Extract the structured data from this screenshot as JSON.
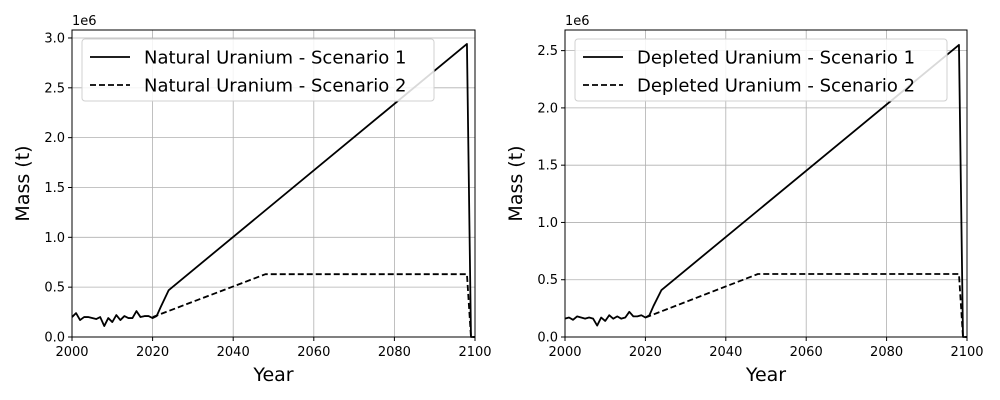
{
  "chart_data": [
    {
      "type": "line",
      "title": "",
      "xlabel": "Year",
      "ylabel": "Mass (t)",
      "y_offset_label": "1e6",
      "xlim": [
        2000,
        2100
      ],
      "ylim": [
        0,
        3.08
      ],
      "x_ticks": [
        2000,
        2020,
        2040,
        2060,
        2080,
        2100
      ],
      "x_tick_labels": [
        "2000",
        "2020",
        "2040",
        "2060",
        "2080",
        "2100"
      ],
      "y_ticks": [
        0,
        0.5,
        1.0,
        1.5,
        2.0,
        2.5,
        3.0
      ],
      "y_tick_labels": [
        "0.0",
        "0.5",
        "1.0",
        "1.5",
        "2.0",
        "2.5",
        "3.0"
      ],
      "grid": true,
      "legend_position": "top-left",
      "series": [
        {
          "name": "Natural Uranium - Scenario 1",
          "style": "solid",
          "color": "#000000",
          "x": [
            2000,
            2001,
            2002,
            2003,
            2004,
            2005,
            2006,
            2007,
            2008,
            2009,
            2010,
            2011,
            2012,
            2013,
            2014,
            2015,
            2016,
            2017,
            2018,
            2019,
            2020,
            2021,
            2022,
            2024,
            2098,
            2099,
            2100
          ],
          "y": [
            0.2,
            0.24,
            0.17,
            0.2,
            0.2,
            0.19,
            0.18,
            0.2,
            0.11,
            0.19,
            0.15,
            0.22,
            0.17,
            0.21,
            0.19,
            0.19,
            0.26,
            0.2,
            0.21,
            0.21,
            0.19,
            0.21,
            0.3,
            0.47,
            2.94,
            0.0,
            0.0
          ]
        },
        {
          "name": "Natural Uranium - Scenario 2",
          "style": "dashed",
          "color": "#000000",
          "x": [
            2020,
            2048,
            2098,
            2099,
            2100
          ],
          "y": [
            0.2,
            0.63,
            0.63,
            0.0,
            0.0
          ]
        }
      ]
    },
    {
      "type": "line",
      "title": "",
      "xlabel": "Year",
      "ylabel": "Mass (t)",
      "y_offset_label": "1e6",
      "xlim": [
        2000,
        2100
      ],
      "ylim": [
        0,
        2.68
      ],
      "x_ticks": [
        2000,
        2020,
        2040,
        2060,
        2080,
        2100
      ],
      "x_tick_labels": [
        "2000",
        "2020",
        "2040",
        "2060",
        "2080",
        "2100"
      ],
      "y_ticks": [
        0,
        0.5,
        1.0,
        1.5,
        2.0,
        2.5
      ],
      "y_tick_labels": [
        "0.0",
        "0.5",
        "1.0",
        "1.5",
        "2.0",
        "2.5"
      ],
      "grid": true,
      "legend_position": "top-left",
      "series": [
        {
          "name": "Depleted Uranium - Scenario 1",
          "style": "solid",
          "color": "#000000",
          "x": [
            2000,
            2001,
            2002,
            2003,
            2004,
            2005,
            2006,
            2007,
            2008,
            2009,
            2010,
            2011,
            2012,
            2013,
            2014,
            2015,
            2016,
            2017,
            2018,
            2019,
            2020,
            2021,
            2022,
            2024,
            2098,
            2099,
            2100
          ],
          "y": [
            0.16,
            0.17,
            0.15,
            0.18,
            0.17,
            0.16,
            0.17,
            0.16,
            0.1,
            0.17,
            0.14,
            0.19,
            0.16,
            0.18,
            0.16,
            0.17,
            0.22,
            0.18,
            0.18,
            0.19,
            0.17,
            0.19,
            0.27,
            0.41,
            2.55,
            0.0,
            0.0
          ]
        },
        {
          "name": "Depleted Uranium - Scenario 2",
          "style": "dashed",
          "color": "#000000",
          "x": [
            2020,
            2048,
            2098,
            2099,
            2100
          ],
          "y": [
            0.17,
            0.55,
            0.55,
            0.0,
            0.0
          ]
        }
      ]
    }
  ]
}
